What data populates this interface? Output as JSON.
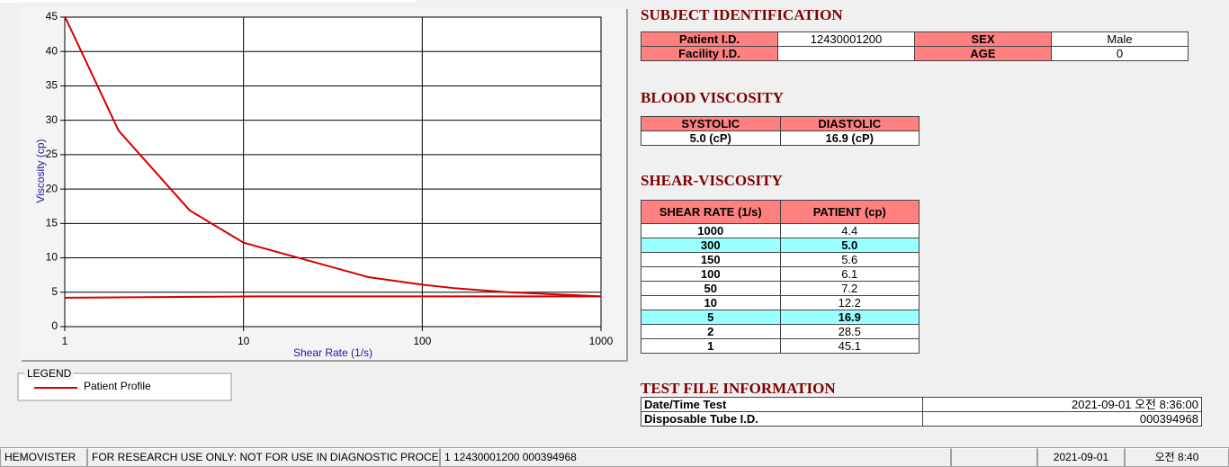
{
  "chart_data": {
    "type": "line",
    "x_label": "Shear Rate (1/s)",
    "y_label": "Viscosity (cp)",
    "x_scale": "log",
    "xlim": [
      1,
      1000
    ],
    "xticks": [
      1,
      10,
      100,
      1000
    ],
    "ylim": [
      0,
      45
    ],
    "yticks": [
      0,
      5,
      10,
      15,
      20,
      25,
      30,
      35,
      40,
      45
    ],
    "grid": true,
    "legend_title": "LEGEND",
    "series": [
      {
        "name": "Patient Profile",
        "color": "#d40000",
        "x": [
          1,
          2,
          5,
          10,
          50,
          100,
          150,
          300,
          1000
        ],
        "values": [
          45.1,
          28.5,
          16.9,
          12.2,
          7.2,
          6.1,
          5.6,
          5.0,
          4.4
        ]
      },
      {
        "color": "#d40000",
        "x": [
          1,
          12,
          1000
        ],
        "values": [
          4.2,
          4.4,
          4.4
        ]
      }
    ]
  },
  "subject": {
    "title": "SUBJECT IDENTIFICATION",
    "rows": [
      [
        "Patient I.D.",
        "12430001200",
        "SEX",
        "Male"
      ],
      [
        "Facility I.D.",
        null,
        "AGE",
        "0"
      ]
    ]
  },
  "blood_viscosity": {
    "title": "BLOOD VISCOSITY",
    "headers": [
      "SYSTOLIC",
      "DIASTOLIC"
    ],
    "values": [
      "5.0 (cP)",
      "16.9 (cP)"
    ]
  },
  "shear_viscosity": {
    "title": "SHEAR-VISCOSITY",
    "headers": [
      "SHEAR RATE (1/s)",
      "PATIENT (cp)"
    ],
    "highlight_rows": [
      1,
      6
    ],
    "rows": [
      [
        "1000",
        "4.4"
      ],
      [
        "300",
        "5.0"
      ],
      [
        "150",
        "5.6"
      ],
      [
        "100",
        "6.1"
      ],
      [
        "50",
        "7.2"
      ],
      [
        "10",
        "12.2"
      ],
      [
        "5",
        "16.9"
      ],
      [
        "2",
        "28.5"
      ],
      [
        "1",
        "45.1"
      ]
    ]
  },
  "test_file": {
    "title": "TEST FILE INFORMATION",
    "rows": [
      [
        "Date/Time Test",
        "2021-09-01   오전 8:36:00"
      ],
      [
        "Disposable Tube I.D.",
        "000394968"
      ]
    ]
  },
  "status_bar": [
    "HEMOVISTER",
    "FOR RESEARCH USE ONLY: NOT FOR USE IN DIAGNOSTIC PROCEDURES",
    "1  12430001200  000394968",
    "2021-09-01",
    "오전 8:40"
  ]
}
